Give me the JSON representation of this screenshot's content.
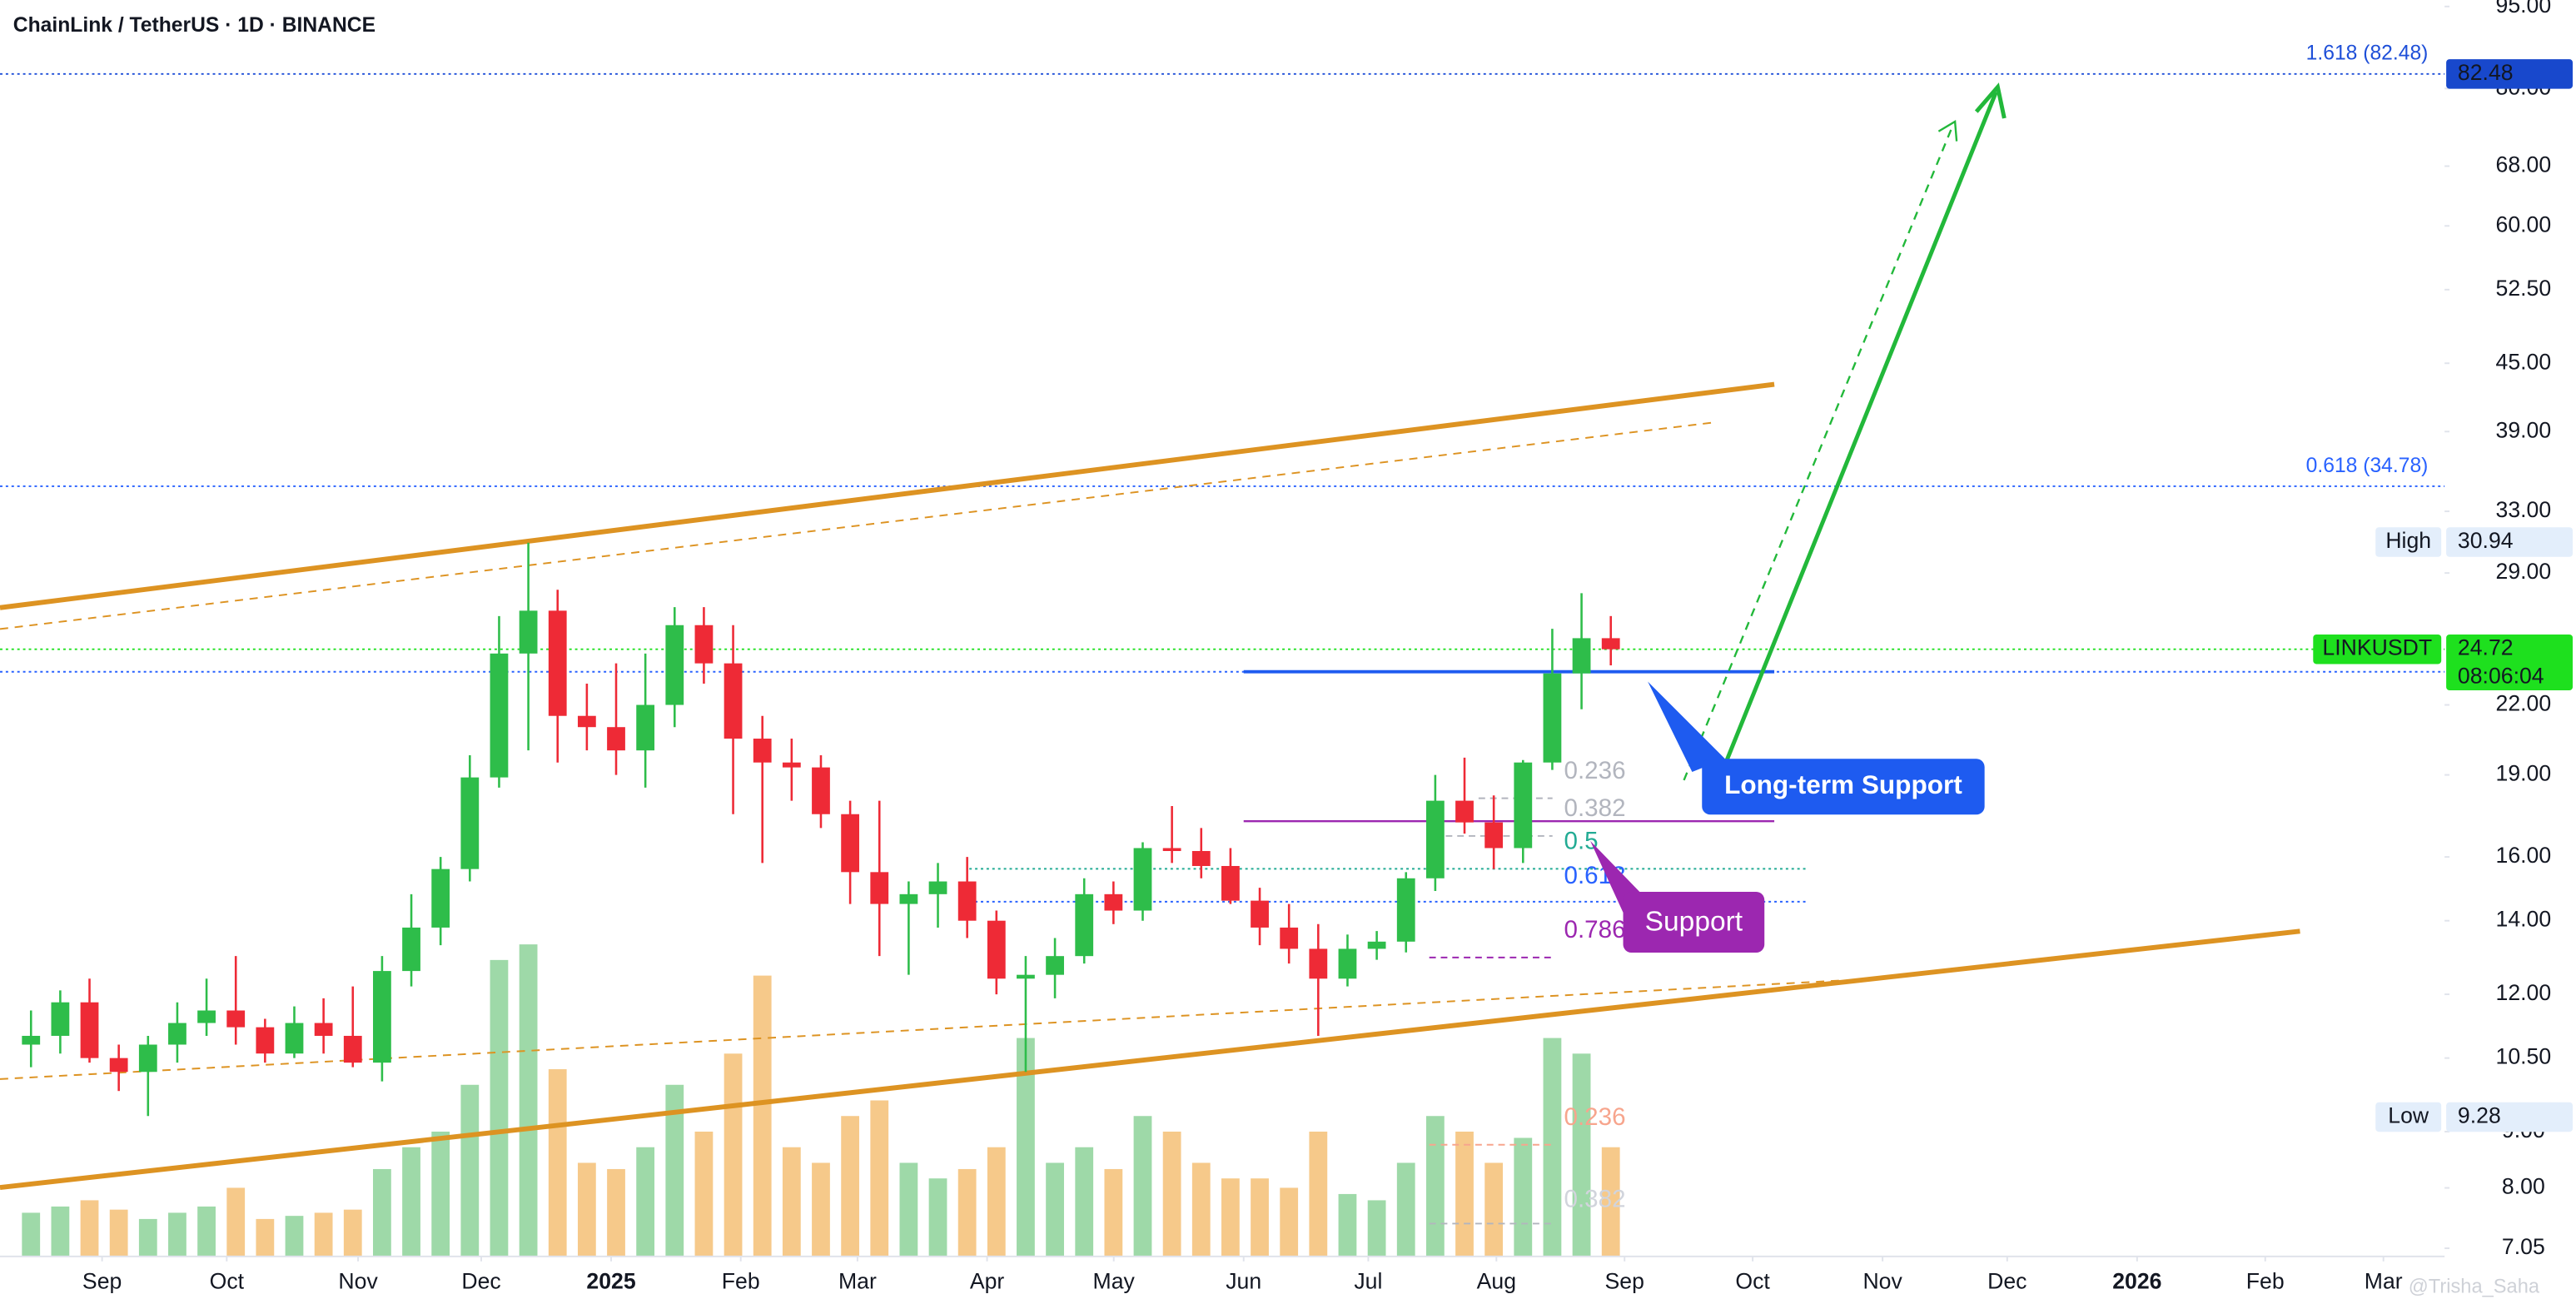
{
  "chart_data": {
    "type": "candlestick",
    "title": "ChainLink / TetherUS · 1D · BINANCE",
    "categories": [
      null,
      null,
      null,
      null,
      null,
      null,
      null,
      null,
      null,
      null,
      null,
      null,
      null,
      null,
      null,
      null,
      null,
      null,
      null,
      null,
      null,
      null,
      null,
      null,
      null,
      null,
      null,
      null,
      null,
      null,
      null,
      null,
      null,
      null,
      null,
      null,
      null,
      null,
      null,
      null,
      null,
      null,
      null,
      null,
      null,
      null,
      null,
      null,
      null,
      null,
      null,
      null,
      null,
      null,
      null
    ],
    "open": [
      10.8,
      11.0,
      11.8,
      10.5,
      10.2,
      10.8,
      11.3,
      11.6,
      11.2,
      10.6,
      11.3,
      11.0,
      10.4,
      12.6,
      13.8,
      15.6,
      18.9,
      24.5,
      26.8,
      21.5,
      21.0,
      20.0,
      22.0,
      26.0,
      24.0,
      20.5,
      19.5,
      19.3,
      17.5,
      15.5,
      14.5,
      14.8,
      15.2,
      14.0,
      12.4,
      12.5,
      13.0,
      14.8,
      14.3,
      16.3,
      16.2,
      15.7,
      14.6,
      13.8,
      13.2,
      12.4,
      13.2,
      13.4,
      15.3,
      18.0,
      17.2,
      16.3,
      19.5,
      23.5,
      25.3
    ],
    "high": [
      11.6,
      12.1,
      12.4,
      10.8,
      11.0,
      11.8,
      12.4,
      13.0,
      11.4,
      11.7,
      11.9,
      12.2,
      13.0,
      14.8,
      16.0,
      19.8,
      26.5,
      30.9,
      28.0,
      23.0,
      24.0,
      24.5,
      27.0,
      27.0,
      26.0,
      21.5,
      20.5,
      19.8,
      18.0,
      18.0,
      15.2,
      15.8,
      16.0,
      14.3,
      13.0,
      13.5,
      15.3,
      15.2,
      16.5,
      17.8,
      17.0,
      16.3,
      15.0,
      14.5,
      13.9,
      13.6,
      13.7,
      15.5,
      19.0,
      19.7,
      18.2,
      19.6,
      25.8,
      27.8,
      26.5
    ],
    "low": [
      10.3,
      10.6,
      10.4,
      9.8,
      9.3,
      10.4,
      11.0,
      10.8,
      10.4,
      10.5,
      10.6,
      10.3,
      10.0,
      12.2,
      13.3,
      15.2,
      18.5,
      20.0,
      19.5,
      20.0,
      19.0,
      18.5,
      21.0,
      23.0,
      17.5,
      15.8,
      18.0,
      17.0,
      14.5,
      13.0,
      12.5,
      13.8,
      13.5,
      12.0,
      10.2,
      11.9,
      12.8,
      13.9,
      14.0,
      15.8,
      15.3,
      14.5,
      13.3,
      12.8,
      11.0,
      12.2,
      12.9,
      13.1,
      14.9,
      16.8,
      15.6,
      15.8,
      19.2,
      21.8,
      23.9
    ],
    "close": [
      11.0,
      11.8,
      10.5,
      10.2,
      10.8,
      11.3,
      11.6,
      11.2,
      10.6,
      11.3,
      11.0,
      10.4,
      12.6,
      13.8,
      15.6,
      18.9,
      24.5,
      26.8,
      21.5,
      21.0,
      20.0,
      22.0,
      26.0,
      24.0,
      20.5,
      19.5,
      19.3,
      17.5,
      15.5,
      14.5,
      14.8,
      15.2,
      14.0,
      12.4,
      12.5,
      13.0,
      14.8,
      14.3,
      16.3,
      16.2,
      15.7,
      14.6,
      13.8,
      13.2,
      12.4,
      13.2,
      13.4,
      15.3,
      18.0,
      17.2,
      16.3,
      19.5,
      23.5,
      25.3,
      24.72
    ],
    "volume": [
      14,
      16,
      18,
      15,
      12,
      14,
      16,
      22,
      12,
      13,
      14,
      15,
      28,
      35,
      40,
      55,
      95,
      100,
      60,
      30,
      28,
      35,
      55,
      40,
      65,
      90,
      35,
      30,
      45,
      50,
      30,
      25,
      28,
      35,
      70,
      30,
      35,
      28,
      45,
      40,
      30,
      25,
      25,
      22,
      40,
      20,
      18,
      30,
      45,
      40,
      30,
      38,
      70,
      65,
      35
    ],
    "up_color": "#2ebd4a",
    "down_color": "#ee2a36",
    "volume_up_color": "#9ed9a8",
    "volume_down_color": "#f6c98a",
    "log_scale": true,
    "ylim": [
      6.93,
      96.3
    ],
    "yticks": [
      {
        "value": 95,
        "label": "95.00"
      },
      {
        "value": 80,
        "label": "80.00"
      },
      {
        "value": 68,
        "label": "68.00"
      },
      {
        "value": 60,
        "label": "60.00"
      },
      {
        "value": 52.5,
        "label": "52.50"
      },
      {
        "value": 45,
        "label": "45.00"
      },
      {
        "value": 39,
        "label": "39.00"
      },
      {
        "value": 33,
        "label": "33.00"
      },
      {
        "value": 29,
        "label": "29.00"
      },
      {
        "value": 22,
        "label": "22.00"
      },
      {
        "value": 19,
        "label": "19.00"
      },
      {
        "value": 16,
        "label": "16.00"
      },
      {
        "value": 14,
        "label": "14.00"
      },
      {
        "value": 12,
        "label": "12.00"
      },
      {
        "value": 10.5,
        "label": "10.50"
      },
      {
        "value": 9,
        "label": "9.00"
      },
      {
        "value": 8,
        "label": "8.00"
      },
      {
        "value": 7.05,
        "label": "7.05"
      }
    ],
    "vlim": [
      0,
      100
    ],
    "xlim": [
      -1.06,
      82.5
    ],
    "xticks": [
      {
        "value": 2.43,
        "label": "Sep"
      },
      {
        "value": 6.69,
        "label": "Oct"
      },
      {
        "value": 11.18,
        "label": "Nov"
      },
      {
        "value": 15.39,
        "label": "Dec"
      },
      {
        "value": 19.83,
        "label": "2025"
      },
      {
        "value": 24.26,
        "label": "Feb"
      },
      {
        "value": 28.25,
        "label": "Mar"
      },
      {
        "value": 32.68,
        "label": "Apr"
      },
      {
        "value": 37.01,
        "label": "May"
      },
      {
        "value": 41.45,
        "label": "Jun"
      },
      {
        "value": 45.71,
        "label": "Jul"
      },
      {
        "value": 50.09,
        "label": "Aug"
      },
      {
        "value": 54.47,
        "label": "Sep"
      },
      {
        "value": 58.85,
        "label": "Oct"
      },
      {
        "value": 63.29,
        "label": "Nov"
      },
      {
        "value": 67.55,
        "label": "Dec"
      },
      {
        "value": 71.99,
        "label": "2026"
      },
      {
        "value": 76.37,
        "label": "Feb"
      },
      {
        "value": 80.41,
        "label": "Mar"
      }
    ],
    "levels": [
      {
        "text": "1.618 (82.48)",
        "value": 82.48,
        "color": "#1e4fd8"
      },
      {
        "text": "0.618 (34.78)",
        "value": 34.78,
        "color": "#2962ff"
      }
    ],
    "price_tags": [
      {
        "value": 82.48,
        "color": "#1848cc"
      },
      {
        "name": "High",
        "value": 30.94,
        "color": "#e3eefb"
      },
      {
        "name": "LINKUSDT",
        "value": 24.72,
        "countdown": "08:06:04",
        "color": "#1ee01e"
      },
      {
        "name": "Low",
        "value": 9.28,
        "color": "#e3eefb"
      }
    ],
    "fib_labels": [
      "0.236",
      "0.382",
      "0.5",
      "0.618",
      "0.786"
    ],
    "volume_fib_labels": [
      "0.236",
      "0.382"
    ],
    "annotations": [
      "Long-term Support",
      "Support"
    ],
    "watermark": "@Trisha_Saha"
  }
}
